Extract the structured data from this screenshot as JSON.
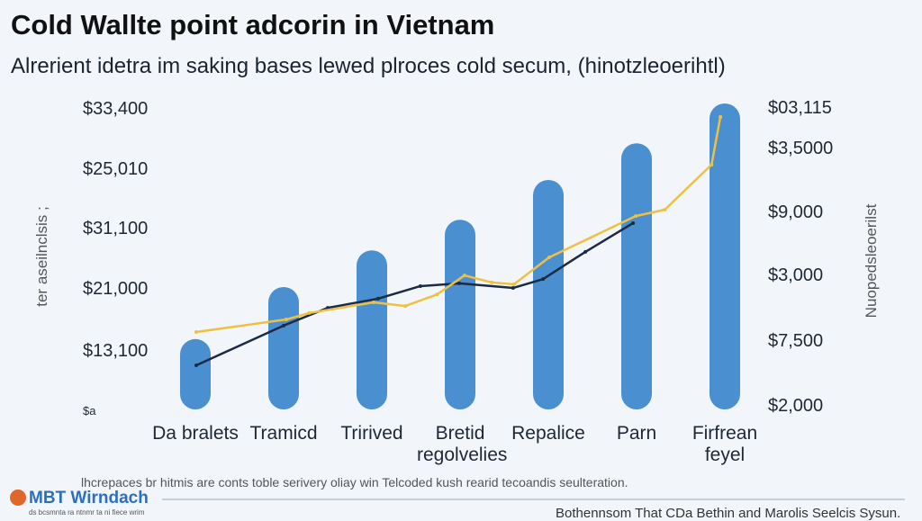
{
  "chart_data": {
    "type": "bar-line",
    "title": "Cold Wallte point adcorin in Vietnam",
    "subtitle": "Alrerient idetra im saking bases lewed plroces cold secum, (hinotzleoerihtl)",
    "y_axis_label": "ter aseilnclsis ;",
    "y2_axis_label": "Nuopedsleoerilst",
    "left_axis_labels": [
      "$33,400",
      "$25,010",
      "$31,100",
      "$21,000",
      "$13,100",
      "$a"
    ],
    "right_axis_labels": [
      "$03,115",
      "$3,5000",
      "$9,000",
      "$3,000",
      "$7,500",
      "$2,000"
    ],
    "categories": [
      "Da bralets",
      "Tramicd",
      "Tririved",
      "Bretid regolvelies",
      "Repalice",
      "Parn",
      "Firfrean feyel"
    ],
    "values": [
      23,
      40,
      52,
      62,
      75,
      87,
      100
    ],
    "color": "#4a8fd0",
    "ylim": [
      0,
      100
    ],
    "xlim": [
      -0.5,
      6.5
    ],
    "lines": [
      {
        "color": "#1c2b45",
        "x": [
          0.01,
          1,
          1.5,
          2.07,
          2.55,
          2.99,
          3.6,
          3.94,
          4.42,
          4.96
        ],
        "values": [
          14.4,
          27.4,
          33.2,
          36.2,
          40.3,
          41.2,
          39.7,
          42.6,
          51.5,
          60.9
        ]
      },
      {
        "color": "#f0c040",
        "x": [
          0.01,
          1.03,
          1.29,
          2.02,
          2.38,
          2.74,
          3.05,
          3.36,
          3.61,
          4.01,
          4.99,
          5.32,
          5.85,
          5.95
        ],
        "values": [
          25.3,
          29.4,
          31.5,
          35,
          33.8,
          37.6,
          43.8,
          41.5,
          40.9,
          49.7,
          63.2,
          65.3,
          80,
          95.6
        ]
      }
    ],
    "footnote": "lhcrepaces br hitmis are conts toble serivery oliay win Telcoded kush rearid tecoandis seulteration.",
    "logo": "MBT Wirndach",
    "logo_caption": "ds bcsmnta ra ntnmr ta ni fiece wrim",
    "credit": "Bothennsom That CDa Bethin and Marolis Seelcis Sysun."
  }
}
